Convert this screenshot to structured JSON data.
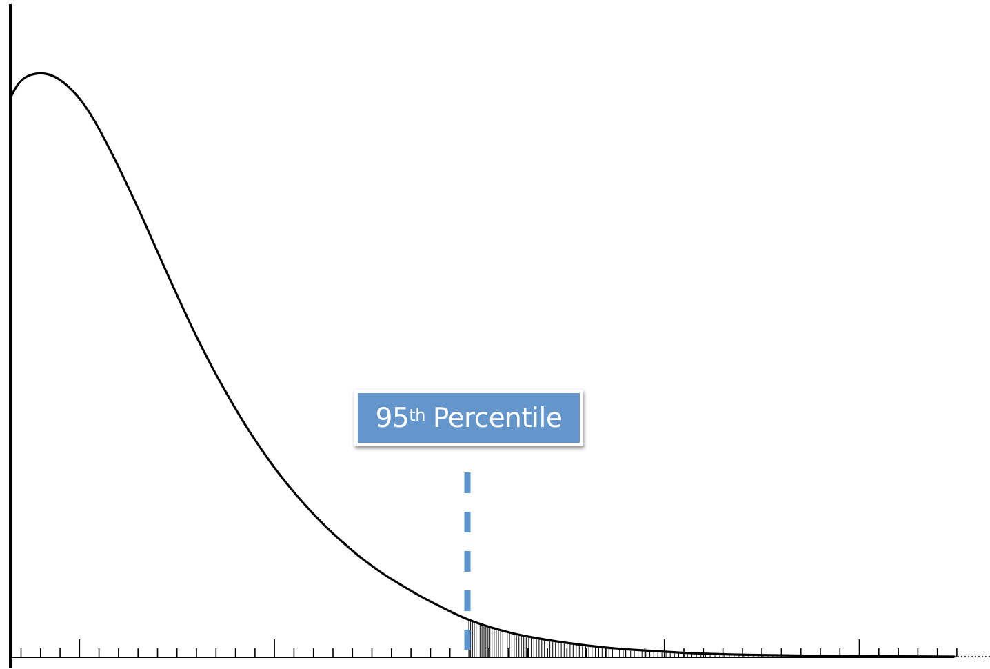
{
  "figure": {
    "kind": "right-skewed probability density curve with shaded upper tail",
    "tail_shading": "vertical-hatch",
    "axis_continuation": "dotted"
  },
  "marker": {
    "percentile": 95,
    "label_number": "95",
    "label_suffix": "th",
    "label_text": "Percentile"
  },
  "colors": {
    "curve": "#000000",
    "axis": "#000000",
    "marker_line": "#5b95cf",
    "callout_fill": "#6496cc",
    "callout_text": "#ffffff"
  }
}
